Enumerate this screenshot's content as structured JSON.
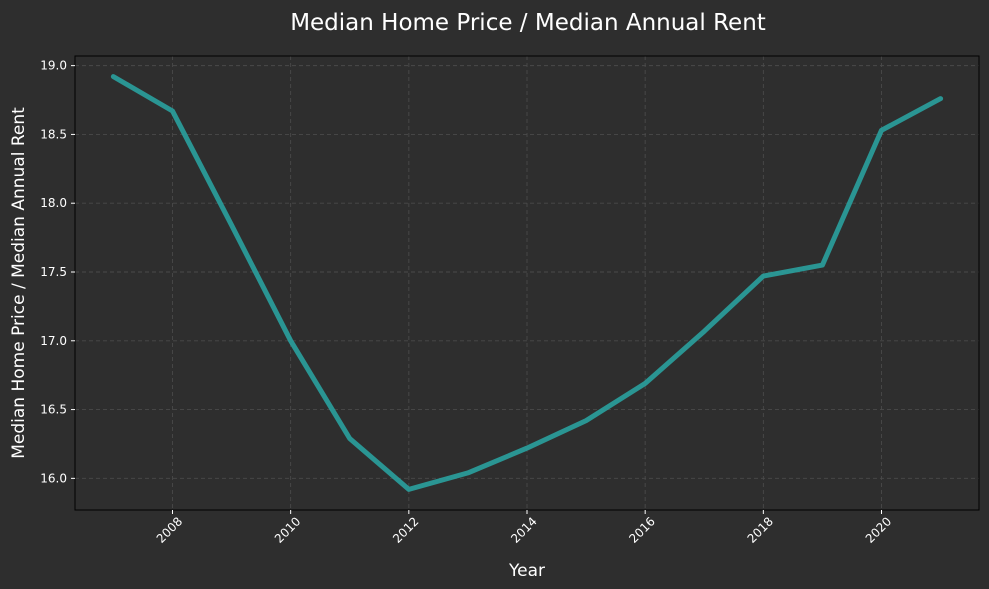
{
  "chart_data": {
    "type": "line",
    "title": "Median Home Price / Median Annual Rent",
    "xlabel": "Year",
    "ylabel": "Median Home Price / Median Annual Rent",
    "x": [
      2007,
      2008,
      2009,
      2010,
      2011,
      2012,
      2013,
      2014,
      2015,
      2016,
      2017,
      2018,
      2019,
      2020,
      2021
    ],
    "series": [
      {
        "values": [
          18.92,
          18.67,
          17.84,
          17.0,
          16.29,
          15.92,
          16.04,
          16.22,
          16.42,
          16.69,
          17.07,
          17.47,
          17.55,
          18.53,
          18.76
        ],
        "color": "#2aa19f"
      }
    ],
    "xlim": [
      2006.35,
      2021.65
    ],
    "ylim": [
      15.77,
      19.07
    ],
    "xticks": [
      2008,
      2010,
      2012,
      2014,
      2016,
      2018,
      2020
    ],
    "yticks": [
      "16.0",
      "16.5",
      "17.0",
      "17.5",
      "18.0",
      "18.5",
      "19.0"
    ],
    "grid": true,
    "background": "#2e2e2e",
    "text_color": "#ffffff"
  }
}
